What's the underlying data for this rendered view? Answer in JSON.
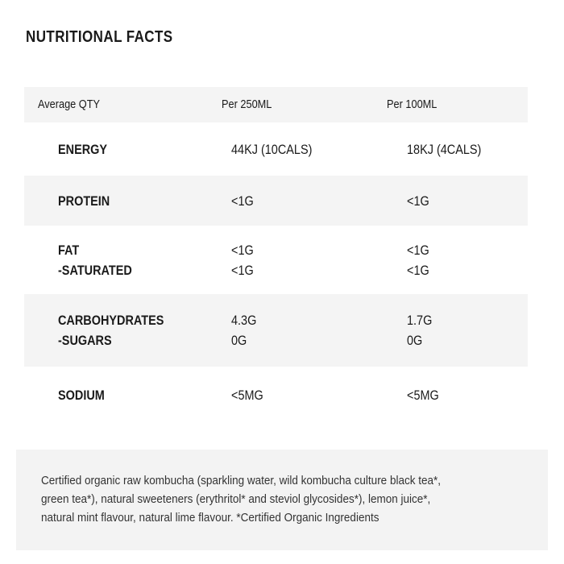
{
  "title": "NUTRITIONAL FACTS",
  "table": {
    "header": [
      "Average QTY",
      "Per 250ML",
      "Per 100ML"
    ],
    "rows": [
      [
        [
          "ENERGY"
        ],
        [
          "44KJ (10CALS)"
        ],
        [
          "18KJ (4CALS)"
        ]
      ],
      [
        [
          "PROTEIN"
        ],
        [
          "<1G"
        ],
        [
          "<1G"
        ]
      ],
      [
        [
          "FAT",
          "-SATURATED"
        ],
        [
          "<1G",
          "<1G"
        ],
        [
          "<1G",
          "<1G"
        ]
      ],
      [
        [
          "CARBOHYDRATES",
          "-SUGARS"
        ],
        [
          "4.3G",
          "0G"
        ],
        [
          "1.7G",
          "0G"
        ]
      ],
      [
        [
          "SODIUM"
        ],
        [
          "<5MG"
        ],
        [
          "<5MG"
        ]
      ]
    ]
  },
  "ingredients": [
    "Certified organic raw kombucha (sparkling water, wild kombucha culture black tea*,",
    "green tea*), natural sweeteners (erythritol* and steviol glycosides*), lemon juice*,",
    "natural mint flavour, natural lime flavour. *Certified Organic Ingredients"
  ]
}
